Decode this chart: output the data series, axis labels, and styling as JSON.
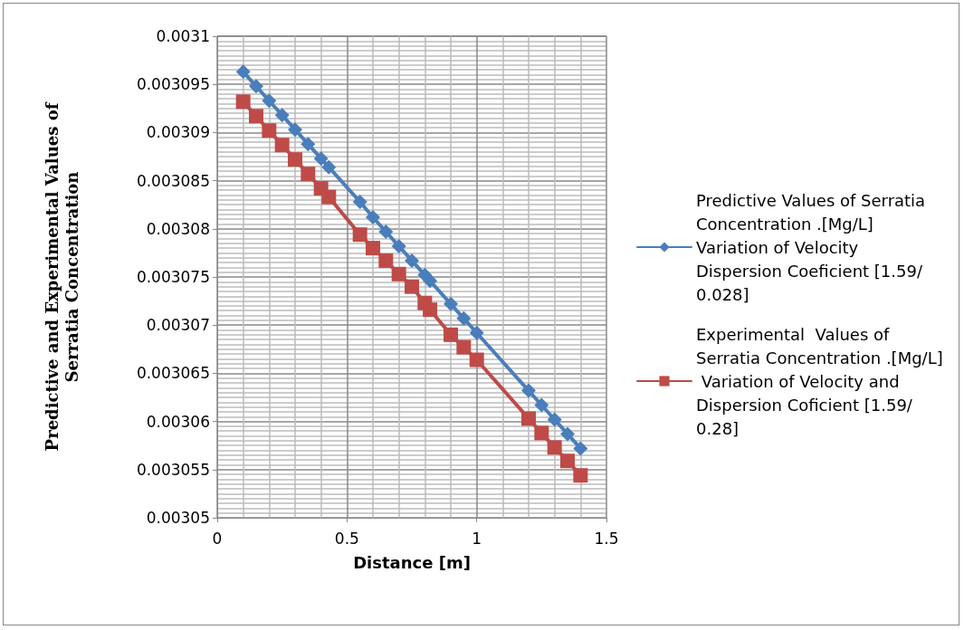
{
  "chart_data": {
    "type": "line",
    "xlabel": "Distance [m]",
    "ylabel": "Predictive and Experimental Values of\nSerratia Concentration",
    "xlim": [
      0,
      1.5
    ],
    "xticks": [
      0,
      0.5,
      1,
      1.5
    ],
    "ylim": [
      0.00305,
      0.0031
    ],
    "yticks": [
      0.00305,
      0.003055,
      0.00306,
      0.003065,
      0.00307,
      0.003075,
      0.00308,
      0.003085,
      0.00309,
      0.003095,
      0.0031
    ],
    "grid": true,
    "legend": "right",
    "line_style": "solid",
    "series": [
      {
        "name": "Predictive Values of Serratia Concentration .[Mg/L] Variation of Velocity Dispersion Coeficient [1.59/0.028]",
        "color": "#4a7ebb",
        "marker": "diamond",
        "x": [
          0.1,
          0.15,
          0.2,
          0.25,
          0.3,
          0.35,
          0.4,
          0.43,
          0.55,
          0.6,
          0.65,
          0.7,
          0.75,
          0.8,
          0.82,
          0.9,
          0.95,
          1.0,
          1.2,
          1.25,
          1.3,
          1.35,
          1.4
        ],
        "values": [
          0.0030963,
          0.0030948,
          0.0030933,
          0.0030918,
          0.0030903,
          0.0030888,
          0.0030873,
          0.0030864,
          0.0030828,
          0.0030812,
          0.0030797,
          0.0030782,
          0.0030767,
          0.0030752,
          0.0030746,
          0.0030722,
          0.0030707,
          0.0030692,
          0.0030632,
          0.0030617,
          0.0030602,
          0.0030587,
          0.0030572
        ]
      },
      {
        "name": "Experimental  Values of Serratia Concentration .[Mg/L] Variation of Velocity and  Dispersion Coficient [1.59/0.28]",
        "color": "#be4b48",
        "marker": "square",
        "x": [
          0.1,
          0.15,
          0.2,
          0.25,
          0.3,
          0.35,
          0.4,
          0.43,
          0.55,
          0.6,
          0.65,
          0.7,
          0.75,
          0.8,
          0.82,
          0.9,
          0.95,
          1.0,
          1.2,
          1.25,
          1.3,
          1.35,
          1.4
        ],
        "values": [
          0.0030932,
          0.0030917,
          0.0030902,
          0.0030887,
          0.0030872,
          0.0030857,
          0.0030842,
          0.0030833,
          0.0030794,
          0.003078,
          0.0030767,
          0.0030753,
          0.003074,
          0.0030723,
          0.0030716,
          0.003069,
          0.0030677,
          0.0030664,
          0.0030603,
          0.0030588,
          0.0030573,
          0.0030559,
          0.0030544
        ]
      }
    ]
  }
}
